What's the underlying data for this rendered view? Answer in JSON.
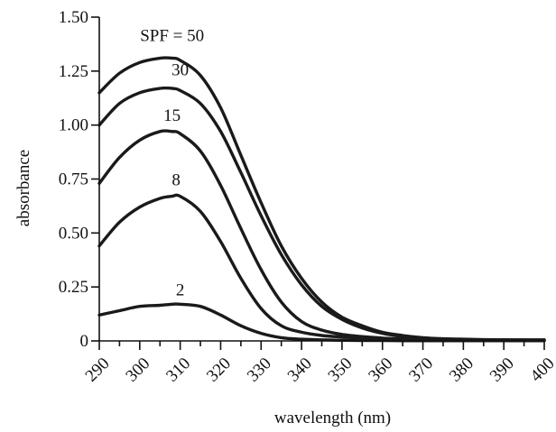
{
  "chart_data": {
    "type": "line",
    "title": "",
    "xlabel": "wavelength (nm)",
    "ylabel": "absorbance",
    "xlim": [
      290,
      400
    ],
    "ylim": [
      0,
      1.5
    ],
    "x_ticks": [
      290,
      300,
      310,
      320,
      330,
      340,
      350,
      360,
      370,
      380,
      390,
      400
    ],
    "x_tick_labels": [
      "290",
      "300",
      "310",
      "320",
      "330",
      "340",
      "350",
      "360",
      "370",
      "380",
      "390",
      "400"
    ],
    "y_ticks": [
      0,
      0.25,
      0.5,
      0.75,
      1.0,
      1.25,
      1.5
    ],
    "y_tick_labels": [
      "0",
      "0.25",
      "0.50",
      "0.75",
      "1.00",
      "1.25",
      "1.50"
    ],
    "grid": false,
    "legend": "none",
    "x": [
      290,
      295,
      300,
      305,
      308,
      310,
      315,
      320,
      325,
      330,
      335,
      340,
      345,
      350,
      355,
      360,
      365,
      370,
      375,
      380,
      385,
      390,
      395,
      400
    ],
    "series": [
      {
        "name": "SPF = 50",
        "label_x": 308,
        "label_y": 1.39,
        "values": [
          1.15,
          1.24,
          1.29,
          1.31,
          1.31,
          1.3,
          1.23,
          1.08,
          0.86,
          0.64,
          0.44,
          0.29,
          0.18,
          0.11,
          0.07,
          0.04,
          0.025,
          0.015,
          0.01,
          0.008,
          0.006,
          0.005,
          0.005,
          0.005
        ]
      },
      {
        "name": "30",
        "label_x": 310,
        "label_y": 1.23,
        "values": [
          1.0,
          1.1,
          1.15,
          1.17,
          1.17,
          1.16,
          1.1,
          0.97,
          0.78,
          0.58,
          0.4,
          0.26,
          0.16,
          0.1,
          0.06,
          0.035,
          0.02,
          0.012,
          0.008,
          0.006,
          0.005,
          0.005,
          0.004,
          0.004
        ]
      },
      {
        "name": "15",
        "label_x": 308,
        "label_y": 1.02,
        "values": [
          0.73,
          0.85,
          0.93,
          0.97,
          0.97,
          0.96,
          0.88,
          0.72,
          0.52,
          0.33,
          0.18,
          0.09,
          0.05,
          0.03,
          0.02,
          0.013,
          0.009,
          0.007,
          0.005,
          0.004,
          0.004,
          0.003,
          0.003,
          0.003
        ]
      },
      {
        "name": "8",
        "label_x": 309,
        "label_y": 0.72,
        "values": [
          0.44,
          0.55,
          0.62,
          0.66,
          0.67,
          0.67,
          0.6,
          0.46,
          0.29,
          0.15,
          0.07,
          0.04,
          0.025,
          0.018,
          0.013,
          0.009,
          0.007,
          0.005,
          0.004,
          0.003,
          0.003,
          0.003,
          0.002,
          0.002
        ]
      },
      {
        "name": "2",
        "label_x": 310,
        "label_y": 0.21,
        "values": [
          0.12,
          0.14,
          0.16,
          0.165,
          0.17,
          0.17,
          0.16,
          0.12,
          0.07,
          0.035,
          0.015,
          0.008,
          0.005,
          0.003,
          0.002,
          0.002,
          0.001,
          0.001,
          0.001,
          0.001,
          0.001,
          0.001,
          0.001,
          0.001
        ]
      }
    ]
  }
}
